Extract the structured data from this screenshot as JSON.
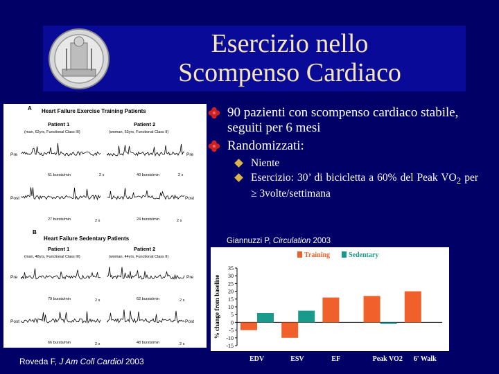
{
  "title": {
    "line1": "Esercizio nello",
    "line2": "Scompenso Cardiaco"
  },
  "bullets": [
    {
      "text": "90 pazienti con scompenso cardiaco stabile, seguiti per 6 mesi"
    },
    {
      "text": "Randomizzati:"
    }
  ],
  "sub_bullets": [
    {
      "text": "Niente"
    },
    {
      "text_before": "Esercizio: 30’ di bicicletta a 60% del Peak VO",
      "subscript": "2",
      "text_after": " per ≥ 3volte/settimana"
    }
  ],
  "citation_right": {
    "author": "Giannuzzi P, ",
    "journal": "Circulation",
    "year": " 2003"
  },
  "citation_left": {
    "author": "Roveda F, ",
    "journal": "J Am Coll Cardiol",
    "year": " 2003"
  },
  "left_figure": {
    "panel_a": "A",
    "panel_a_title": "Heart Failure Exercise Training Patients",
    "panel_b": "B",
    "panel_b_title": "Heart Failure Sedentary Patients",
    "patient1": "Patient 1",
    "patient2": "Patient 2",
    "a_p1_desc": "(man, 62yrs, Functional Class III)",
    "a_p2_desc": "(woman, 53yrs, Functional Class II)",
    "b_p1_desc": "(man, 48yrs, Functional Class III)",
    "b_p2_desc": "(woman, 44yrs, Functional Class II)",
    "pre": "Pre",
    "post": "Post",
    "a_pre_left": "61 bursts/min",
    "a_pre_right": "40 bursts/min",
    "a_post_left": "27 bursts/min",
    "a_post_right": "24 bursts/min",
    "b_pre_left": "79 bursts/min",
    "b_pre_right": "62 bursts/min",
    "b_post_left": "66 bursts/min",
    "b_post_right": "48 bursts/min",
    "scale": "2 s"
  },
  "chart_data": {
    "type": "bar",
    "categories": [
      "EDV",
      "ESV",
      "EF",
      "Peak VO2",
      "6' Walk"
    ],
    "series": [
      {
        "name": "Training",
        "values": [
          -5,
          -10,
          16,
          17,
          20
        ],
        "color": "#f0602a"
      },
      {
        "name": "Sedentary",
        "values": [
          6,
          7.5,
          0,
          -1,
          0
        ],
        "color": "#1a9a8a"
      }
    ],
    "ylabel": "% change from baseline",
    "ylim": [
      -15,
      35
    ],
    "yticks": [
      35,
      30,
      25,
      20,
      15,
      10,
      5,
      0,
      -5,
      -10,
      -15
    ],
    "legend": "top"
  }
}
